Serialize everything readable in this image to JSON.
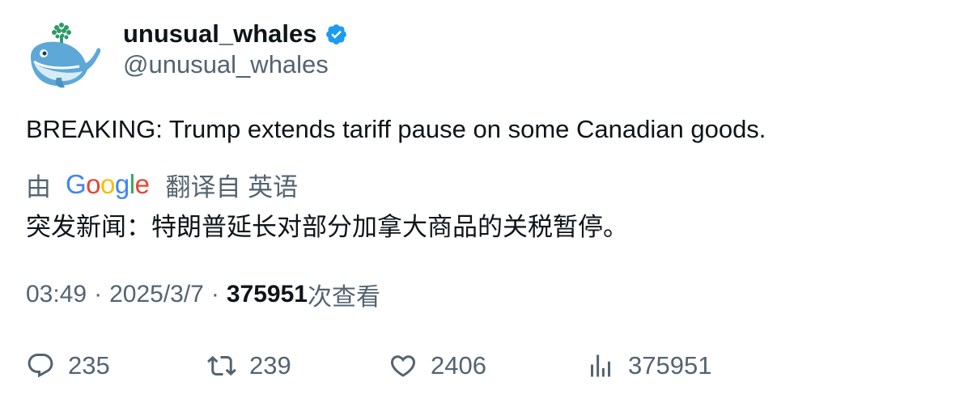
{
  "author": {
    "display_name": "unusual_whales",
    "handle": "@unusual_whales",
    "verified": true,
    "avatar_icon": "whale-avatar-icon"
  },
  "tweet": {
    "text": "BREAKING: Trump extends tariff pause on some Canadian goods."
  },
  "translation": {
    "by_label": "由",
    "provider": "Google",
    "link_label": "翻译自 英语",
    "translated_text": "突发新闻：特朗普延长对部分加拿大商品的关税暂停。"
  },
  "meta": {
    "time": "03:49",
    "separator": "·",
    "date": "2025/3/7",
    "views_count": "375951",
    "views_label": "次查看"
  },
  "actions": {
    "replies": "235",
    "retweets": "239",
    "likes": "2406",
    "views": "375951"
  },
  "colors": {
    "text_primary": "#0f1419",
    "text_secondary": "#536471",
    "verified_blue": "#1d9bf0",
    "google_blue": "#4285F4",
    "google_red": "#EA4335",
    "google_yellow": "#FBBC05",
    "google_green": "#34A853"
  }
}
